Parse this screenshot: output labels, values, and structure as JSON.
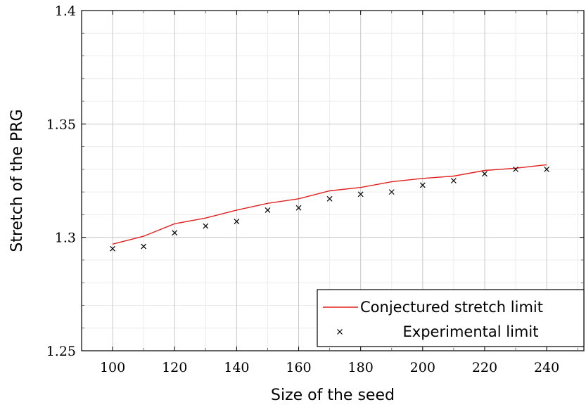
{
  "chart_data": {
    "type": "line",
    "title": "",
    "xlabel": "Size of the seed",
    "ylabel": "Stretch of the PRG",
    "xlim": [
      90,
      252
    ],
    "ylim": [
      1.25,
      1.4
    ],
    "xticks": [
      100,
      120,
      140,
      160,
      180,
      200,
      220,
      240
    ],
    "xtick_labels": [
      "100",
      "120",
      "140",
      "160",
      "180",
      "200",
      "220",
      "240"
    ],
    "yticks": [
      1.25,
      1.3,
      1.35,
      1.4
    ],
    "ytick_labels": [
      "1.25",
      "1.3",
      "1.35",
      "1.4"
    ],
    "grid": true,
    "legend_position": "bottom-right",
    "series": [
      {
        "name": "Conjectured stretch limit",
        "kind": "line",
        "color": "#e0201f",
        "x": [
          100,
          110,
          120,
          130,
          140,
          150,
          160,
          170,
          180,
          190,
          200,
          210,
          220,
          230,
          240
        ],
        "y": [
          1.297,
          1.3005,
          1.306,
          1.3085,
          1.312,
          1.315,
          1.317,
          1.3205,
          1.322,
          1.3245,
          1.326,
          1.327,
          1.3295,
          1.3305,
          1.332
        ]
      },
      {
        "name": "Experimental limit",
        "kind": "scatter",
        "marker": "x",
        "color": "#000000",
        "x": [
          100,
          110,
          120,
          130,
          140,
          150,
          160,
          170,
          180,
          190,
          200,
          210,
          220,
          230,
          240
        ],
        "y": [
          1.295,
          1.296,
          1.302,
          1.305,
          1.307,
          1.312,
          1.313,
          1.317,
          1.319,
          1.32,
          1.323,
          1.325,
          1.328,
          1.33,
          1.33
        ]
      }
    ]
  }
}
